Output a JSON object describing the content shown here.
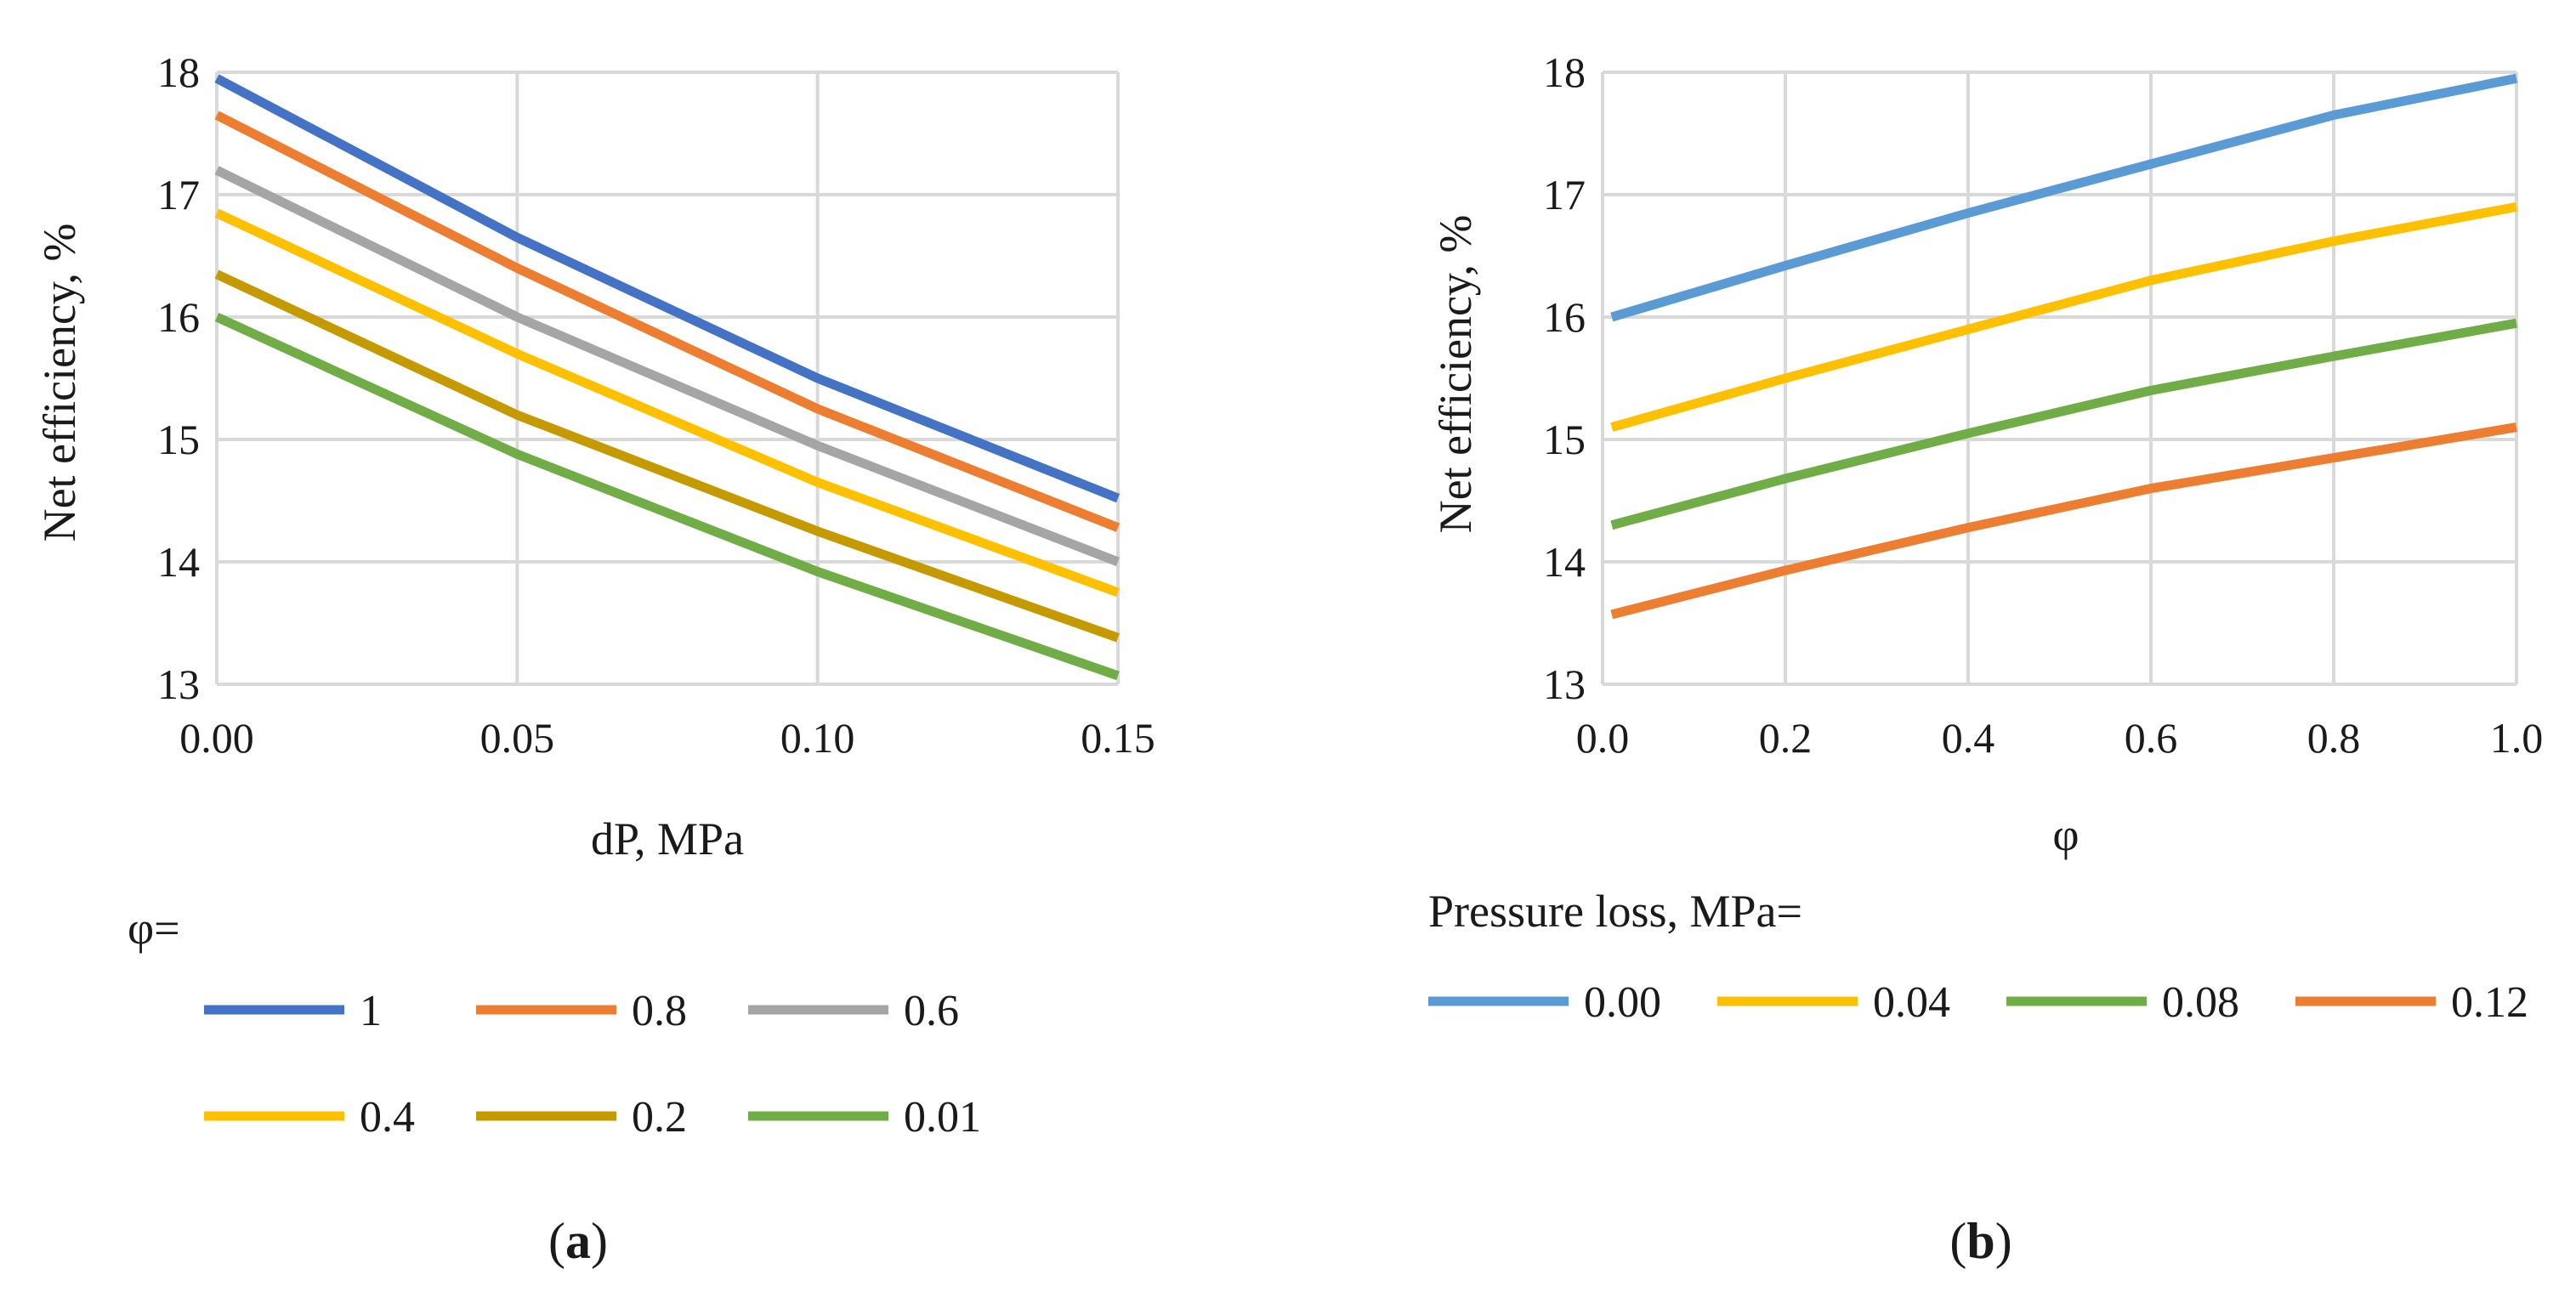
{
  "chart_data": [
    {
      "type": "line",
      "panel_label": "a",
      "xlabel": "dP, MPa",
      "ylabel": "Net efficiency, %",
      "xlim": [
        0,
        0.15
      ],
      "ylim": [
        13,
        18
      ],
      "x_ticks": [
        "0.00",
        "0.05",
        "0.10",
        "0.15"
      ],
      "y_ticks": [
        "13",
        "14",
        "15",
        "16",
        "17",
        "18"
      ],
      "grid": true,
      "legend_title": "φ=",
      "legend_position": "bottom",
      "series": [
        {
          "name": "1",
          "color": "#4472C4",
          "x": [
            0,
            0.05,
            0.1,
            0.15
          ],
          "y": [
            17.95,
            16.65,
            15.5,
            14.52
          ]
        },
        {
          "name": "0.8",
          "color": "#ED7D31",
          "x": [
            0,
            0.05,
            0.1,
            0.15
          ],
          "y": [
            17.65,
            16.4,
            15.25,
            14.28
          ]
        },
        {
          "name": "0.6",
          "color": "#A5A5A5",
          "x": [
            0,
            0.05,
            0.1,
            0.15
          ],
          "y": [
            17.2,
            16.0,
            14.95,
            14.0
          ]
        },
        {
          "name": "0.4",
          "color": "#FFC000",
          "x": [
            0,
            0.05,
            0.1,
            0.15
          ],
          "y": [
            16.85,
            15.7,
            14.65,
            13.75
          ]
        },
        {
          "name": "0.2",
          "color": "#C49A00",
          "x": [
            0,
            0.05,
            0.1,
            0.15
          ],
          "y": [
            16.35,
            15.2,
            14.25,
            13.38
          ]
        },
        {
          "name": "0.01",
          "color": "#70AD47",
          "x": [
            0,
            0.05,
            0.1,
            0.15
          ],
          "y": [
            16.0,
            14.88,
            13.92,
            13.07
          ]
        }
      ]
    },
    {
      "type": "line",
      "panel_label": "b",
      "xlabel": "φ",
      "ylabel": "Net efficiency, %",
      "xlim": [
        0,
        1.0
      ],
      "ylim": [
        13,
        18
      ],
      "x_ticks": [
        "0.0",
        "0.2",
        "0.4",
        "0.6",
        "0.8",
        "1.0"
      ],
      "y_ticks": [
        "13",
        "14",
        "15",
        "16",
        "17",
        "18"
      ],
      "grid": true,
      "legend_title": "Pressure loss, MPa=",
      "legend_position": "bottom",
      "series": [
        {
          "name": "0.00",
          "color": "#5B9BD5",
          "x": [
            0.01,
            0.2,
            0.4,
            0.6,
            0.8,
            1.0
          ],
          "y": [
            16.0,
            16.42,
            16.85,
            17.25,
            17.65,
            17.95
          ]
        },
        {
          "name": "0.04",
          "color": "#FFC000",
          "x": [
            0.01,
            0.2,
            0.4,
            0.6,
            0.8,
            1.0
          ],
          "y": [
            15.1,
            15.5,
            15.9,
            16.3,
            16.62,
            16.9
          ]
        },
        {
          "name": "0.08",
          "color": "#70AD47",
          "x": [
            0.01,
            0.2,
            0.4,
            0.6,
            0.8,
            1.0
          ],
          "y": [
            14.3,
            14.68,
            15.05,
            15.4,
            15.68,
            15.95
          ]
        },
        {
          "name": "0.12",
          "color": "#ED7D31",
          "x": [
            0.01,
            0.2,
            0.4,
            0.6,
            0.8,
            1.0
          ],
          "y": [
            13.57,
            13.93,
            14.28,
            14.6,
            14.85,
            15.1
          ]
        }
      ]
    }
  ]
}
